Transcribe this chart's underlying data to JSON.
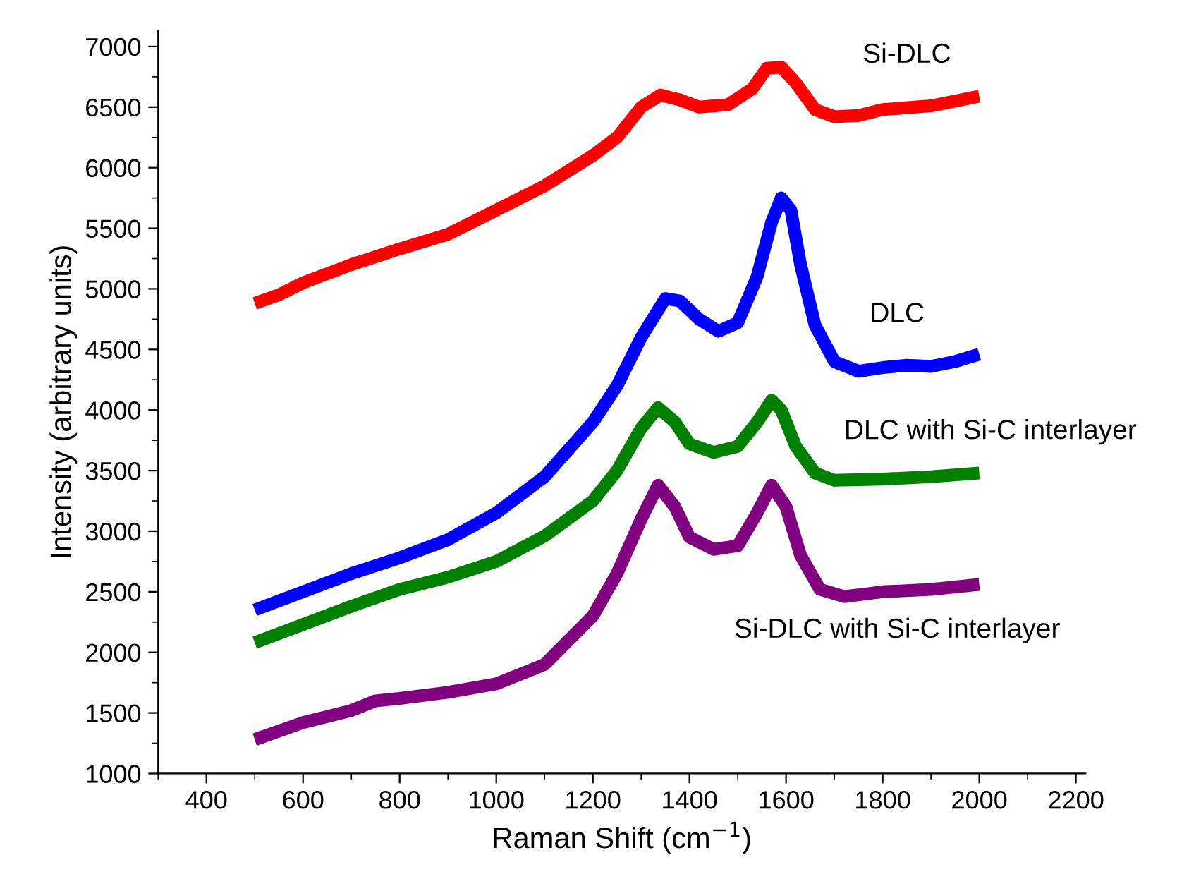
{
  "chart_data": {
    "type": "line",
    "xlabel": "Raman Shift (cm$^{−1}$)",
    "ylabel": "Intensity (arbitrary units)",
    "xlim": [
      300,
      2220
    ],
    "ylim": [
      1000,
      7130
    ],
    "xticks": [
      400,
      600,
      800,
      1000,
      1200,
      1400,
      1600,
      1800,
      2000,
      2200
    ],
    "yticks": [
      1000,
      1500,
      2000,
      2500,
      3000,
      3500,
      4000,
      4500,
      5000,
      5500,
      6000,
      6500,
      7000
    ],
    "grid": false,
    "legend": false,
    "marker": "none",
    "line_style": "solid",
    "series": [
      {
        "name": "Si-DLC",
        "color": "#ff0000",
        "x": [
          500,
          550,
          600,
          700,
          800,
          900,
          1000,
          1100,
          1200,
          1250,
          1300,
          1340,
          1380,
          1420,
          1480,
          1530,
          1560,
          1590,
          1620,
          1660,
          1700,
          1750,
          1800,
          1900,
          2000
        ],
        "values": [
          4880,
          4950,
          5050,
          5200,
          5330,
          5450,
          5650,
          5850,
          6100,
          6250,
          6500,
          6600,
          6560,
          6500,
          6520,
          6650,
          6820,
          6830,
          6700,
          6480,
          6420,
          6430,
          6480,
          6510,
          6590
        ]
      },
      {
        "name": "DLC",
        "color": "#0000ff",
        "x": [
          500,
          600,
          700,
          800,
          900,
          1000,
          1100,
          1200,
          1250,
          1300,
          1350,
          1380,
          1420,
          1460,
          1500,
          1540,
          1570,
          1590,
          1610,
          1630,
          1660,
          1700,
          1750,
          1800,
          1850,
          1900,
          1950,
          2000
        ],
        "values": [
          2350,
          2500,
          2650,
          2780,
          2930,
          3150,
          3450,
          3900,
          4200,
          4600,
          4920,
          4900,
          4750,
          4650,
          4720,
          5100,
          5550,
          5750,
          5650,
          5200,
          4700,
          4400,
          4320,
          4350,
          4370,
          4360,
          4400,
          4460
        ]
      },
      {
        "name": "DLC with Si-C interlayer",
        "color": "#008000",
        "x": [
          500,
          600,
          700,
          800,
          900,
          1000,
          1100,
          1200,
          1250,
          1300,
          1335,
          1370,
          1400,
          1450,
          1500,
          1540,
          1570,
          1590,
          1620,
          1660,
          1700,
          1800,
          1900,
          2000
        ],
        "values": [
          2080,
          2230,
          2380,
          2520,
          2620,
          2750,
          2960,
          3250,
          3500,
          3850,
          4020,
          3900,
          3720,
          3650,
          3700,
          3900,
          4080,
          4000,
          3700,
          3480,
          3420,
          3430,
          3450,
          3480
        ]
      },
      {
        "name": "Si-DLC with Si-C interlayer",
        "color": "#800080",
        "x": [
          500,
          600,
          700,
          750,
          800,
          900,
          1000,
          1100,
          1200,
          1250,
          1300,
          1335,
          1370,
          1400,
          1450,
          1500,
          1540,
          1570,
          1600,
          1630,
          1670,
          1720,
          1800,
          1900,
          2000
        ],
        "values": [
          1280,
          1420,
          1520,
          1600,
          1620,
          1670,
          1740,
          1900,
          2300,
          2650,
          3100,
          3380,
          3200,
          2950,
          2850,
          2880,
          3150,
          3380,
          3200,
          2800,
          2520,
          2460,
          2500,
          2520,
          2560
        ]
      }
    ]
  }
}
